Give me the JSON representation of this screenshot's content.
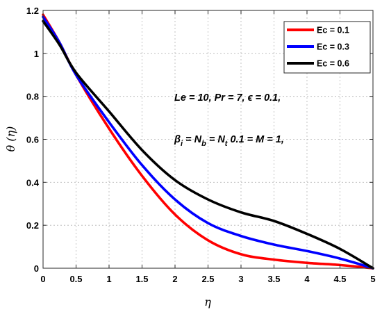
{
  "chart_data": {
    "type": "line",
    "title": "",
    "xlabel": "η",
    "ylabel": "θ (η)",
    "xlim": [
      0,
      5
    ],
    "ylim": [
      0,
      1.2
    ],
    "xticks": [
      "0",
      "0.5",
      "1",
      "1.5",
      "2",
      "2.5",
      "3",
      "3.5",
      "4",
      "4.5",
      "5"
    ],
    "yticks": [
      "0",
      "0.2",
      "0.4",
      "0.6",
      "0.8",
      "1",
      "1.2"
    ],
    "grid": true,
    "legend_position": "top-right",
    "series": [
      {
        "name": "Ec = 0.1",
        "color": "#ff0000",
        "x": [
          0,
          0.25,
          0.5,
          1,
          1.5,
          2,
          2.5,
          3,
          3.5,
          4,
          4.5,
          5
        ],
        "y": [
          1.18,
          1.05,
          0.9,
          0.65,
          0.43,
          0.25,
          0.13,
          0.065,
          0.04,
          0.025,
          0.015,
          0
        ]
      },
      {
        "name": "Ec = 0.3",
        "color": "#0000ff",
        "x": [
          0,
          0.25,
          0.5,
          1,
          1.5,
          2,
          2.5,
          3,
          3.5,
          4,
          4.5,
          5
        ],
        "y": [
          1.17,
          1.05,
          0.9,
          0.68,
          0.48,
          0.32,
          0.21,
          0.15,
          0.11,
          0.08,
          0.045,
          0
        ]
      },
      {
        "name": "Ec = 0.6",
        "color": "#000000",
        "x": [
          0,
          0.25,
          0.5,
          1,
          1.5,
          2,
          2.5,
          3,
          3.5,
          4,
          4.5,
          5
        ],
        "y": [
          1.15,
          1.04,
          0.91,
          0.73,
          0.55,
          0.41,
          0.32,
          0.26,
          0.22,
          0.16,
          0.09,
          0
        ]
      }
    ],
    "annotations": [
      "Le = 10, Pr = 7,  ϵ = 0.1,",
      "β",
      "i",
      " = N",
      "b",
      " = N",
      "t",
      " 0.1 = M = 1,"
    ]
  }
}
